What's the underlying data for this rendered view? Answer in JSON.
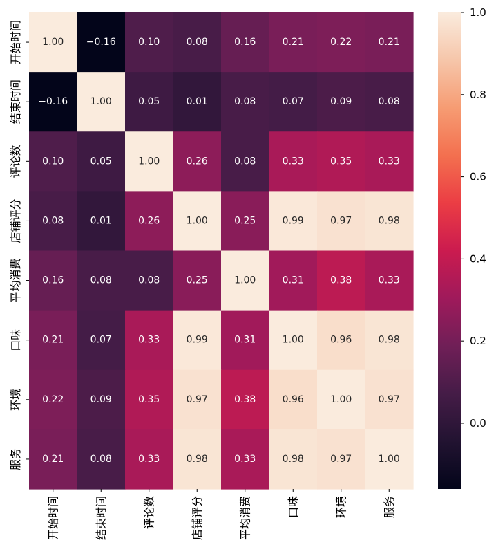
{
  "chart_data": {
    "type": "heatmap",
    "title": "",
    "xlabel": "",
    "ylabel": "",
    "row_labels": [
      "开始时间",
      "结束时间",
      "评论数",
      "店铺评分",
      "平均消费",
      "口味",
      "环境",
      "服务"
    ],
    "col_labels": [
      "开始时间",
      "结束时间",
      "评论数",
      "店铺评分",
      "平均消费",
      "口味",
      "环境",
      "服务"
    ],
    "values": [
      [
        1.0,
        -0.16,
        0.1,
        0.08,
        0.16,
        0.21,
        0.22,
        0.21
      ],
      [
        -0.16,
        1.0,
        0.05,
        0.01,
        0.08,
        0.07,
        0.09,
        0.08
      ],
      [
        0.1,
        0.05,
        1.0,
        0.26,
        0.08,
        0.33,
        0.35,
        0.33
      ],
      [
        0.08,
        0.01,
        0.26,
        1.0,
        0.25,
        0.99,
        0.97,
        0.98
      ],
      [
        0.16,
        0.08,
        0.08,
        0.25,
        1.0,
        0.31,
        0.38,
        0.33
      ],
      [
        0.21,
        0.07,
        0.33,
        0.99,
        0.31,
        1.0,
        0.96,
        0.98
      ],
      [
        0.22,
        0.09,
        0.35,
        0.97,
        0.38,
        0.96,
        1.0,
        0.97
      ],
      [
        0.21,
        0.08,
        0.33,
        0.98,
        0.33,
        0.98,
        0.97,
        1.0
      ]
    ],
    "annotation_format": "0.00",
    "colormap": "rocket",
    "colorbar": {
      "range": [
        -0.16,
        1.0
      ],
      "ticks": [
        0.0,
        0.2,
        0.4,
        0.6,
        0.8,
        1.0
      ],
      "tick_labels": [
        "0.0",
        "0.2",
        "0.4",
        "0.6",
        "0.8",
        "1.0"
      ],
      "placement": "right"
    },
    "grid": false
  }
}
